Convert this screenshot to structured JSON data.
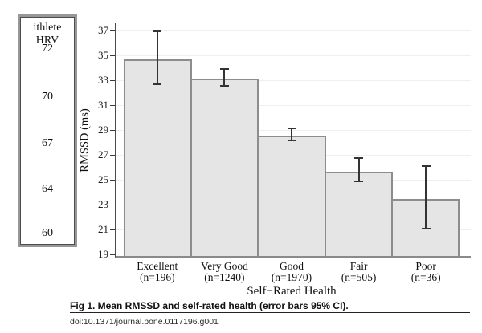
{
  "hrv_panel": {
    "title": "ithlete HRV",
    "values": [
      "72",
      "70",
      "67",
      "64",
      "60"
    ]
  },
  "chart_data": {
    "type": "bar",
    "title": "",
    "xlabel": "Self−Rated Health",
    "ylabel": "RMSSD (ms)",
    "ylim": [
      19,
      37.6
    ],
    "yticks": [
      19,
      21,
      23,
      25,
      27,
      29,
      31,
      33,
      35,
      37
    ],
    "grid": true,
    "legend": "none",
    "categories": [
      "Excellent",
      "Very Good",
      "Good",
      "Fair",
      "Poor"
    ],
    "category_n": [
      "(n=196)",
      "(n=1240)",
      "(n=1970)",
      "(n=505)",
      "(n=36)"
    ],
    "values": [
      34.8,
      33.3,
      28.7,
      25.8,
      23.6
    ],
    "error_bars": "95% CI",
    "ci_low": [
      32.6,
      32.5,
      28.1,
      24.8,
      21.0
    ],
    "ci_high": [
      37.0,
      34.0,
      29.2,
      26.8,
      26.2
    ],
    "bar_fill_color": "#e5e5e5",
    "bar_border_color": "#8d8d8d"
  },
  "caption": {
    "text": "Fig 1. Mean RMSSD and self-rated health (error bars 95% CI).",
    "doi": "doi:10.1371/journal.pone.0117196.g001"
  }
}
